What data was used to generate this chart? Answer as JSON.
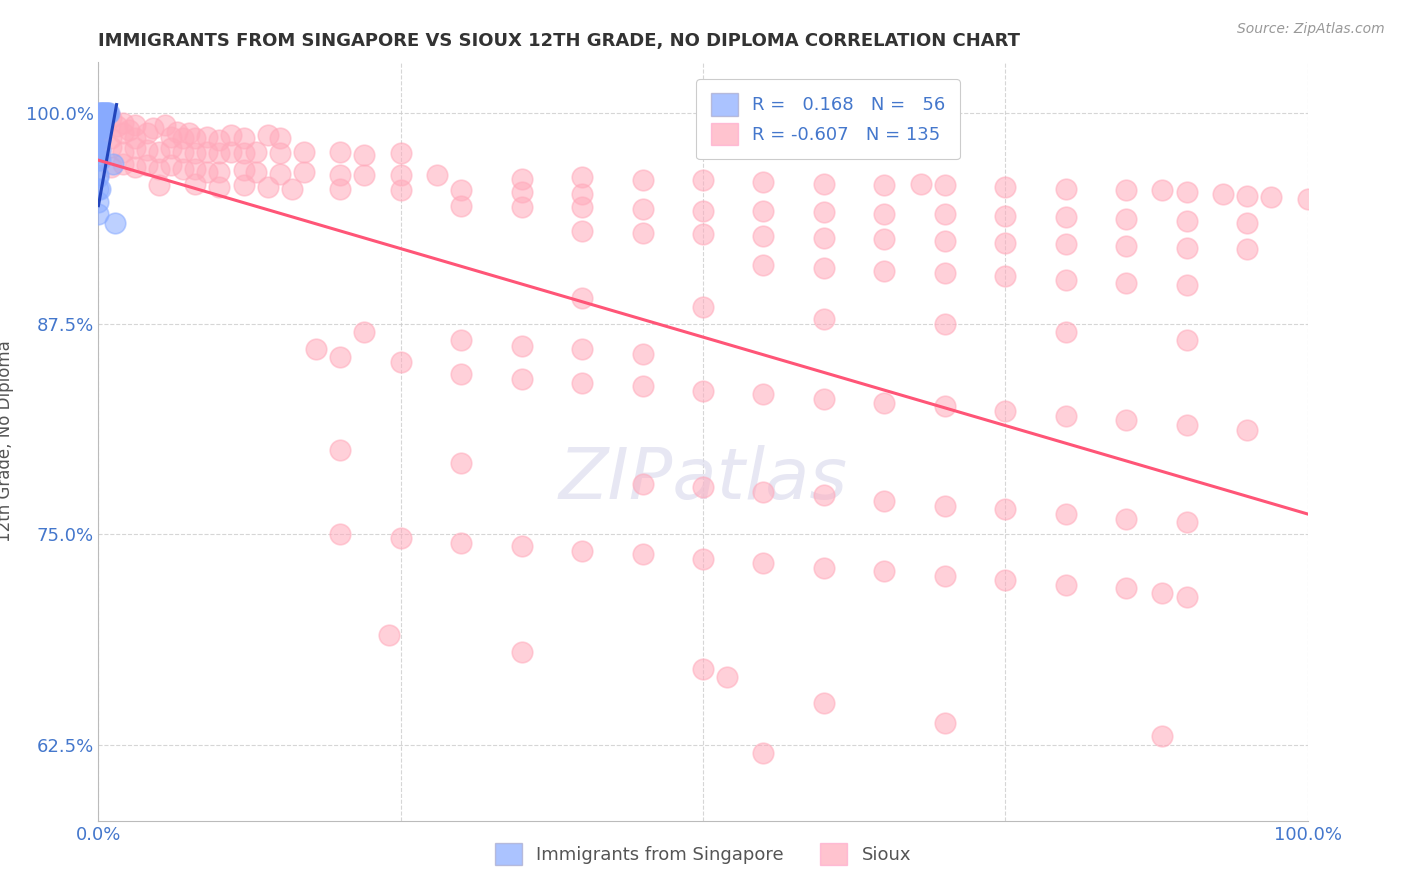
{
  "title": "IMMIGRANTS FROM SINGAPORE VS SIOUX 12TH GRADE, NO DIPLOMA CORRELATION CHART",
  "source_text": "Source: ZipAtlas.com",
  "ylabel": "12th Grade, No Diploma",
  "x_min": 0.0,
  "x_max": 1.0,
  "y_min": 0.58,
  "y_max": 1.03,
  "y_ticks": [
    0.625,
    0.75,
    0.875,
    1.0
  ],
  "y_tick_labels": [
    "62.5%",
    "75.0%",
    "87.5%",
    "100.0%"
  ],
  "x_tick_labels": [
    "0.0%",
    "100.0%"
  ],
  "legend_r1": "0.168",
  "legend_n1": "56",
  "legend_r2": "-0.607",
  "legend_n2": "135",
  "blue_color": "#88aaff",
  "pink_color": "#ffaabb",
  "trend_blue": "#2244bb",
  "trend_pink": "#ff5577",
  "blue_scatter": [
    [
      0.0,
      1.0
    ],
    [
      0.0,
      0.999
    ],
    [
      0.0,
      0.998
    ],
    [
      0.0,
      0.997
    ],
    [
      0.0,
      0.996
    ],
    [
      0.001,
      1.0
    ],
    [
      0.001,
      0.999
    ],
    [
      0.001,
      0.998
    ],
    [
      0.001,
      0.997
    ],
    [
      0.002,
      1.0
    ],
    [
      0.002,
      0.999
    ],
    [
      0.002,
      0.998
    ],
    [
      0.003,
      1.0
    ],
    [
      0.003,
      0.999
    ],
    [
      0.003,
      0.998
    ],
    [
      0.004,
      1.0
    ],
    [
      0.004,
      0.999
    ],
    [
      0.005,
      1.0
    ],
    [
      0.005,
      0.999
    ],
    [
      0.006,
      1.0
    ],
    [
      0.006,
      0.999
    ],
    [
      0.007,
      1.0
    ],
    [
      0.008,
      1.0
    ],
    [
      0.009,
      1.0
    ],
    [
      0.0,
      0.993
    ],
    [
      0.0,
      0.992
    ],
    [
      0.0,
      0.991
    ],
    [
      0.0,
      0.99
    ],
    [
      0.001,
      0.993
    ],
    [
      0.001,
      0.992
    ],
    [
      0.001,
      0.991
    ],
    [
      0.002,
      0.992
    ],
    [
      0.002,
      0.991
    ],
    [
      0.003,
      0.992
    ],
    [
      0.0,
      0.985
    ],
    [
      0.0,
      0.984
    ],
    [
      0.001,
      0.985
    ],
    [
      0.0,
      0.978
    ],
    [
      0.0,
      0.977
    ],
    [
      0.001,
      0.978
    ],
    [
      0.0,
      0.972
    ],
    [
      0.001,
      0.972
    ],
    [
      0.012,
      0.97
    ],
    [
      0.0,
      0.963
    ],
    [
      0.0,
      0.962
    ],
    [
      0.0,
      0.955
    ],
    [
      0.001,
      0.955
    ],
    [
      0.0,
      0.947
    ],
    [
      0.0,
      0.94
    ],
    [
      0.014,
      0.935
    ]
  ],
  "pink_scatter": [
    [
      0.0,
      0.995
    ],
    [
      0.005,
      0.993
    ],
    [
      0.01,
      0.997
    ],
    [
      0.015,
      0.992
    ],
    [
      0.02,
      0.994
    ],
    [
      0.025,
      0.99
    ],
    [
      0.03,
      0.993
    ],
    [
      0.045,
      0.991
    ],
    [
      0.055,
      0.993
    ],
    [
      0.01,
      0.985
    ],
    [
      0.02,
      0.988
    ],
    [
      0.03,
      0.985
    ],
    [
      0.04,
      0.988
    ],
    [
      0.06,
      0.986
    ],
    [
      0.065,
      0.989
    ],
    [
      0.07,
      0.985
    ],
    [
      0.075,
      0.988
    ],
    [
      0.08,
      0.985
    ],
    [
      0.09,
      0.986
    ],
    [
      0.1,
      0.984
    ],
    [
      0.11,
      0.987
    ],
    [
      0.12,
      0.985
    ],
    [
      0.14,
      0.987
    ],
    [
      0.15,
      0.985
    ],
    [
      0.0,
      0.978
    ],
    [
      0.01,
      0.98
    ],
    [
      0.02,
      0.977
    ],
    [
      0.03,
      0.979
    ],
    [
      0.04,
      0.978
    ],
    [
      0.05,
      0.977
    ],
    [
      0.06,
      0.979
    ],
    [
      0.07,
      0.977
    ],
    [
      0.08,
      0.976
    ],
    [
      0.09,
      0.977
    ],
    [
      0.1,
      0.976
    ],
    [
      0.11,
      0.977
    ],
    [
      0.12,
      0.976
    ],
    [
      0.13,
      0.977
    ],
    [
      0.15,
      0.976
    ],
    [
      0.17,
      0.977
    ],
    [
      0.2,
      0.977
    ],
    [
      0.22,
      0.975
    ],
    [
      0.25,
      0.976
    ],
    [
      0.01,
      0.968
    ],
    [
      0.02,
      0.97
    ],
    [
      0.03,
      0.968
    ],
    [
      0.04,
      0.969
    ],
    [
      0.05,
      0.967
    ],
    [
      0.06,
      0.969
    ],
    [
      0.07,
      0.967
    ],
    [
      0.08,
      0.967
    ],
    [
      0.09,
      0.965
    ],
    [
      0.1,
      0.965
    ],
    [
      0.12,
      0.966
    ],
    [
      0.13,
      0.965
    ],
    [
      0.15,
      0.964
    ],
    [
      0.17,
      0.965
    ],
    [
      0.2,
      0.963
    ],
    [
      0.22,
      0.963
    ],
    [
      0.25,
      0.963
    ],
    [
      0.28,
      0.963
    ],
    [
      0.35,
      0.961
    ],
    [
      0.4,
      0.962
    ],
    [
      0.45,
      0.96
    ],
    [
      0.5,
      0.96
    ],
    [
      0.55,
      0.959
    ],
    [
      0.6,
      0.958
    ],
    [
      0.65,
      0.957
    ],
    [
      0.68,
      0.958
    ],
    [
      0.7,
      0.957
    ],
    [
      0.75,
      0.956
    ],
    [
      0.8,
      0.955
    ],
    [
      0.85,
      0.954
    ],
    [
      0.88,
      0.954
    ],
    [
      0.9,
      0.953
    ],
    [
      0.93,
      0.952
    ],
    [
      0.95,
      0.951
    ],
    [
      0.97,
      0.95
    ],
    [
      1.0,
      0.949
    ],
    [
      0.05,
      0.957
    ],
    [
      0.08,
      0.958
    ],
    [
      0.1,
      0.956
    ],
    [
      0.12,
      0.957
    ],
    [
      0.14,
      0.956
    ],
    [
      0.16,
      0.955
    ],
    [
      0.2,
      0.955
    ],
    [
      0.25,
      0.954
    ],
    [
      0.3,
      0.954
    ],
    [
      0.35,
      0.953
    ],
    [
      0.4,
      0.952
    ],
    [
      0.3,
      0.945
    ],
    [
      0.35,
      0.944
    ],
    [
      0.4,
      0.944
    ],
    [
      0.45,
      0.943
    ],
    [
      0.5,
      0.942
    ],
    [
      0.55,
      0.942
    ],
    [
      0.6,
      0.941
    ],
    [
      0.65,
      0.94
    ],
    [
      0.7,
      0.94
    ],
    [
      0.75,
      0.939
    ],
    [
      0.8,
      0.938
    ],
    [
      0.85,
      0.937
    ],
    [
      0.9,
      0.936
    ],
    [
      0.95,
      0.935
    ],
    [
      0.4,
      0.93
    ],
    [
      0.45,
      0.929
    ],
    [
      0.5,
      0.928
    ],
    [
      0.55,
      0.927
    ],
    [
      0.6,
      0.926
    ],
    [
      0.65,
      0.925
    ],
    [
      0.7,
      0.924
    ],
    [
      0.75,
      0.923
    ],
    [
      0.8,
      0.922
    ],
    [
      0.85,
      0.921
    ],
    [
      0.9,
      0.92
    ],
    [
      0.95,
      0.919
    ],
    [
      0.55,
      0.91
    ],
    [
      0.6,
      0.908
    ],
    [
      0.65,
      0.906
    ],
    [
      0.7,
      0.905
    ],
    [
      0.75,
      0.903
    ],
    [
      0.8,
      0.901
    ],
    [
      0.85,
      0.899
    ],
    [
      0.9,
      0.898
    ],
    [
      0.4,
      0.89
    ],
    [
      0.5,
      0.885
    ],
    [
      0.6,
      0.878
    ],
    [
      0.7,
      0.875
    ],
    [
      0.8,
      0.87
    ],
    [
      0.9,
      0.865
    ],
    [
      0.22,
      0.87
    ],
    [
      0.3,
      0.865
    ],
    [
      0.35,
      0.862
    ],
    [
      0.4,
      0.86
    ],
    [
      0.45,
      0.857
    ],
    [
      0.18,
      0.86
    ],
    [
      0.2,
      0.855
    ],
    [
      0.25,
      0.852
    ],
    [
      0.3,
      0.845
    ],
    [
      0.35,
      0.842
    ],
    [
      0.4,
      0.84
    ],
    [
      0.45,
      0.838
    ],
    [
      0.5,
      0.835
    ],
    [
      0.55,
      0.833
    ],
    [
      0.6,
      0.83
    ],
    [
      0.65,
      0.828
    ],
    [
      0.7,
      0.826
    ],
    [
      0.75,
      0.823
    ],
    [
      0.8,
      0.82
    ],
    [
      0.85,
      0.818
    ],
    [
      0.9,
      0.815
    ],
    [
      0.95,
      0.812
    ],
    [
      0.2,
      0.8
    ],
    [
      0.3,
      0.792
    ],
    [
      0.45,
      0.78
    ],
    [
      0.5,
      0.778
    ],
    [
      0.55,
      0.775
    ],
    [
      0.6,
      0.773
    ],
    [
      0.65,
      0.77
    ],
    [
      0.7,
      0.767
    ],
    [
      0.75,
      0.765
    ],
    [
      0.8,
      0.762
    ],
    [
      0.85,
      0.759
    ],
    [
      0.9,
      0.757
    ],
    [
      0.2,
      0.75
    ],
    [
      0.25,
      0.748
    ],
    [
      0.3,
      0.745
    ],
    [
      0.35,
      0.743
    ],
    [
      0.4,
      0.74
    ],
    [
      0.45,
      0.738
    ],
    [
      0.5,
      0.735
    ],
    [
      0.55,
      0.733
    ],
    [
      0.6,
      0.73
    ],
    [
      0.65,
      0.728
    ],
    [
      0.7,
      0.725
    ],
    [
      0.75,
      0.723
    ],
    [
      0.8,
      0.72
    ],
    [
      0.85,
      0.718
    ],
    [
      0.88,
      0.715
    ],
    [
      0.9,
      0.713
    ],
    [
      0.24,
      0.69
    ],
    [
      0.35,
      0.68
    ],
    [
      0.5,
      0.67
    ],
    [
      0.52,
      0.665
    ],
    [
      0.55,
      0.62
    ],
    [
      0.6,
      0.65
    ],
    [
      0.88,
      0.63
    ],
    [
      0.7,
      0.638
    ]
  ],
  "pink_trend_x": [
    0.0,
    1.0
  ],
  "pink_trend_y": [
    0.972,
    0.762
  ],
  "blue_trend_x": [
    0.0,
    0.015
  ],
  "blue_trend_y": [
    0.945,
    1.005
  ],
  "background_color": "#ffffff",
  "grid_color": "#cccccc",
  "title_color": "#333333",
  "axis_label_color": "#555555",
  "tick_label_color": "#4477cc"
}
